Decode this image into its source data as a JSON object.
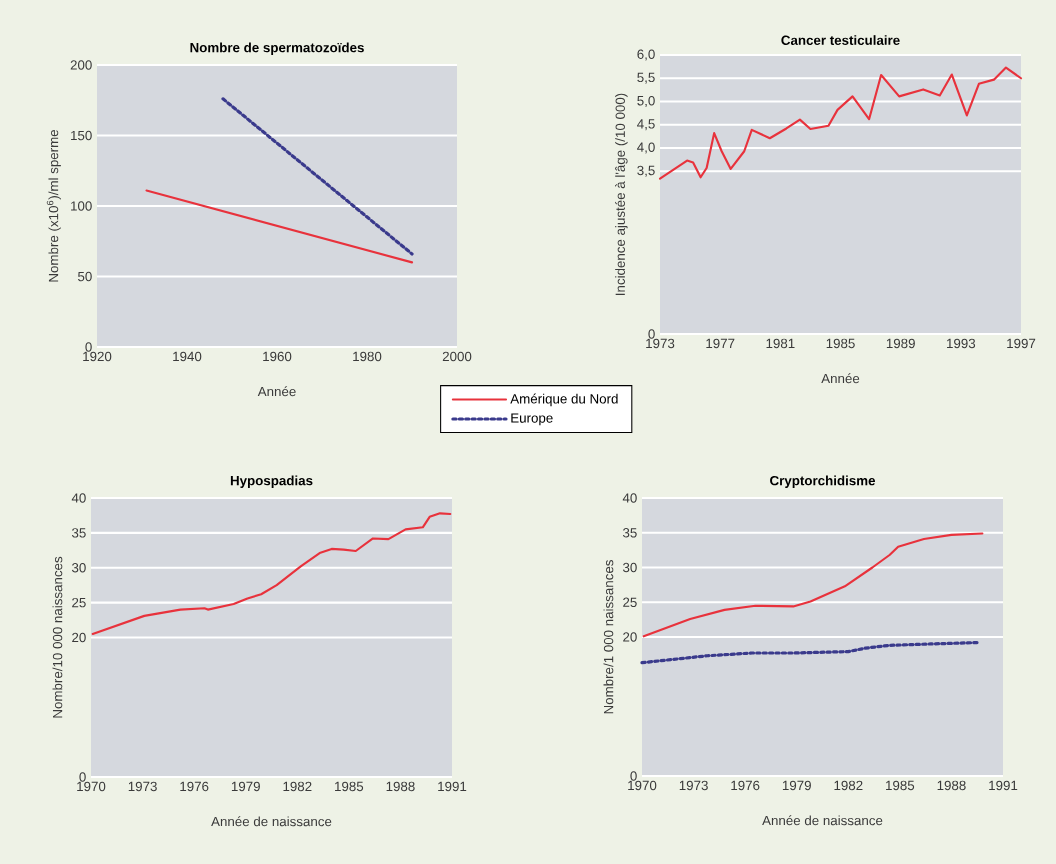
{
  "chart_data": [
    {
      "type": "line",
      "title": "Nombre de spermatozoïdes",
      "xlabel": "Année",
      "ylabel": "Nombre (x10$^{6}$)/ml sperme",
      "xlim": [
        1920,
        2000
      ],
      "xticks": [
        1920,
        1940,
        1960,
        1980,
        2000
      ],
      "ylim": [
        0,
        200
      ],
      "yticks": [
        0,
        50,
        100,
        150,
        200
      ],
      "grid": "y",
      "legend": "bottom right",
      "series": [
        {
          "name": "Amérique du Nord",
          "color": "#e8323c",
          "line_style": "solid",
          "x": [
            1931,
            1990
          ],
          "values": [
            111,
            60
          ]
        },
        {
          "name": "Europe",
          "color": "#3a3a8c",
          "line_style": "dotted",
          "x": [
            1948,
            1990
          ],
          "values": [
            176,
            66
          ]
        }
      ]
    },
    {
      "type": "line",
      "title": "Cancer testiculaire",
      "xlabel": "Année",
      "ylabel": "Incidence ajustée à l'âge (/10 000)",
      "xlim": [
        1973,
        1997
      ],
      "xticks": [
        1973,
        1977,
        1981,
        1985,
        1989,
        1993,
        1997
      ],
      "ylim": [
        0,
        6.0
      ],
      "yticks": [
        0,
        {
          "value": 3.5,
          "label": "3,5"
        },
        {
          "value": 4.0,
          "label": "4,0"
        },
        {
          "value": 4.5,
          "label": "4,5"
        },
        {
          "value": 5.0,
          "label": "5,0"
        },
        {
          "value": 5.5,
          "label": "5,5"
        },
        {
          "value": 6.0,
          "label": "6,0"
        }
      ],
      "grid": "y",
      "series": [
        {
          "color": "#e8323c",
          "line_style": "solid",
          "x": [
            1973.0,
            1974.8,
            1975.2,
            1975.7,
            1976.1,
            1976.6,
            1977.1,
            1977.7,
            1978.6,
            1979.1,
            1980.3,
            1981.4,
            1982.3,
            1983.0,
            1984.2,
            1984.8,
            1985.8,
            1986.9,
            1987.7,
            1988.9,
            1990.5,
            1991.6,
            1992.4,
            1993.4,
            1994.2,
            1995.2,
            1996.0,
            1997.0
          ],
          "values": [
            3.34,
            3.73,
            3.69,
            3.37,
            3.57,
            4.32,
            3.93,
            3.55,
            3.93,
            4.39,
            4.21,
            4.42,
            4.61,
            4.41,
            4.48,
            4.82,
            5.11,
            4.62,
            5.57,
            5.11,
            5.26,
            5.13,
            5.58,
            4.7,
            5.38,
            5.47,
            5.73,
            5.5
          ]
        }
      ]
    },
    {
      "type": "line",
      "title": "Hypospadias",
      "xlabel": "Année de naissance",
      "ylabel": "Nombre/10 000 naissances",
      "xlim": [
        1970,
        1991
      ],
      "xticks": [
        1970,
        1973,
        1976,
        1979,
        1982,
        1985,
        1988,
        1991
      ],
      "ylim": [
        0,
        40
      ],
      "yticks": [
        0,
        20,
        25,
        30,
        35,
        40
      ],
      "grid": "y",
      "series": [
        {
          "color": "#e8323c",
          "line_style": "solid",
          "x": [
            1970.1,
            1973.1,
            1975.2,
            1976.6,
            1976.8,
            1978.3,
            1979.1,
            1979.9,
            1980.8,
            1982.2,
            1983.3,
            1984.0,
            1984.7,
            1985.4,
            1986.4,
            1987.3,
            1988.3,
            1989.3,
            1989.7,
            1990.3,
            1990.9
          ],
          "values": [
            20.5,
            23.1,
            24.0,
            24.2,
            24.0,
            24.8,
            25.6,
            26.2,
            27.5,
            30.2,
            32.1,
            32.7,
            32.6,
            32.4,
            34.2,
            34.1,
            35.5,
            35.8,
            37.3,
            37.8,
            37.7
          ]
        }
      ]
    },
    {
      "type": "line",
      "title": "Cryptorchidisme",
      "xlabel": "Année de naissance",
      "ylabel": "Nombre/1 000 naissances",
      "xlim": [
        1970,
        1991
      ],
      "xticks": [
        1970,
        1973,
        1976,
        1979,
        1982,
        1985,
        1988,
        1991
      ],
      "ylim": [
        0,
        40
      ],
      "yticks": [
        0,
        20,
        25,
        30,
        35,
        40
      ],
      "grid": "y",
      "series": [
        {
          "color": "#e8323c",
          "line_style": "solid",
          "x": [
            1970.1,
            1972.8,
            1974.8,
            1976.6,
            1978.8,
            1979.8,
            1981.8,
            1983.4,
            1984.4,
            1984.9,
            1986.4,
            1988.0,
            1989.8
          ],
          "values": [
            20.1,
            22.6,
            23.9,
            24.5,
            24.4,
            25.1,
            27.3,
            30.0,
            31.8,
            33.0,
            34.1,
            34.7,
            34.9
          ]
        },
        {
          "color": "#3a3a8c",
          "line_style": "dotted",
          "x": [
            1970.0,
            1973.8,
            1976.4,
            1978.8,
            1982.0,
            1983.0,
            1984.4,
            1986.8,
            1989.5
          ],
          "values": [
            16.3,
            17.3,
            17.7,
            17.7,
            17.9,
            18.4,
            18.8,
            19.0,
            19.2
          ]
        }
      ]
    }
  ]
}
